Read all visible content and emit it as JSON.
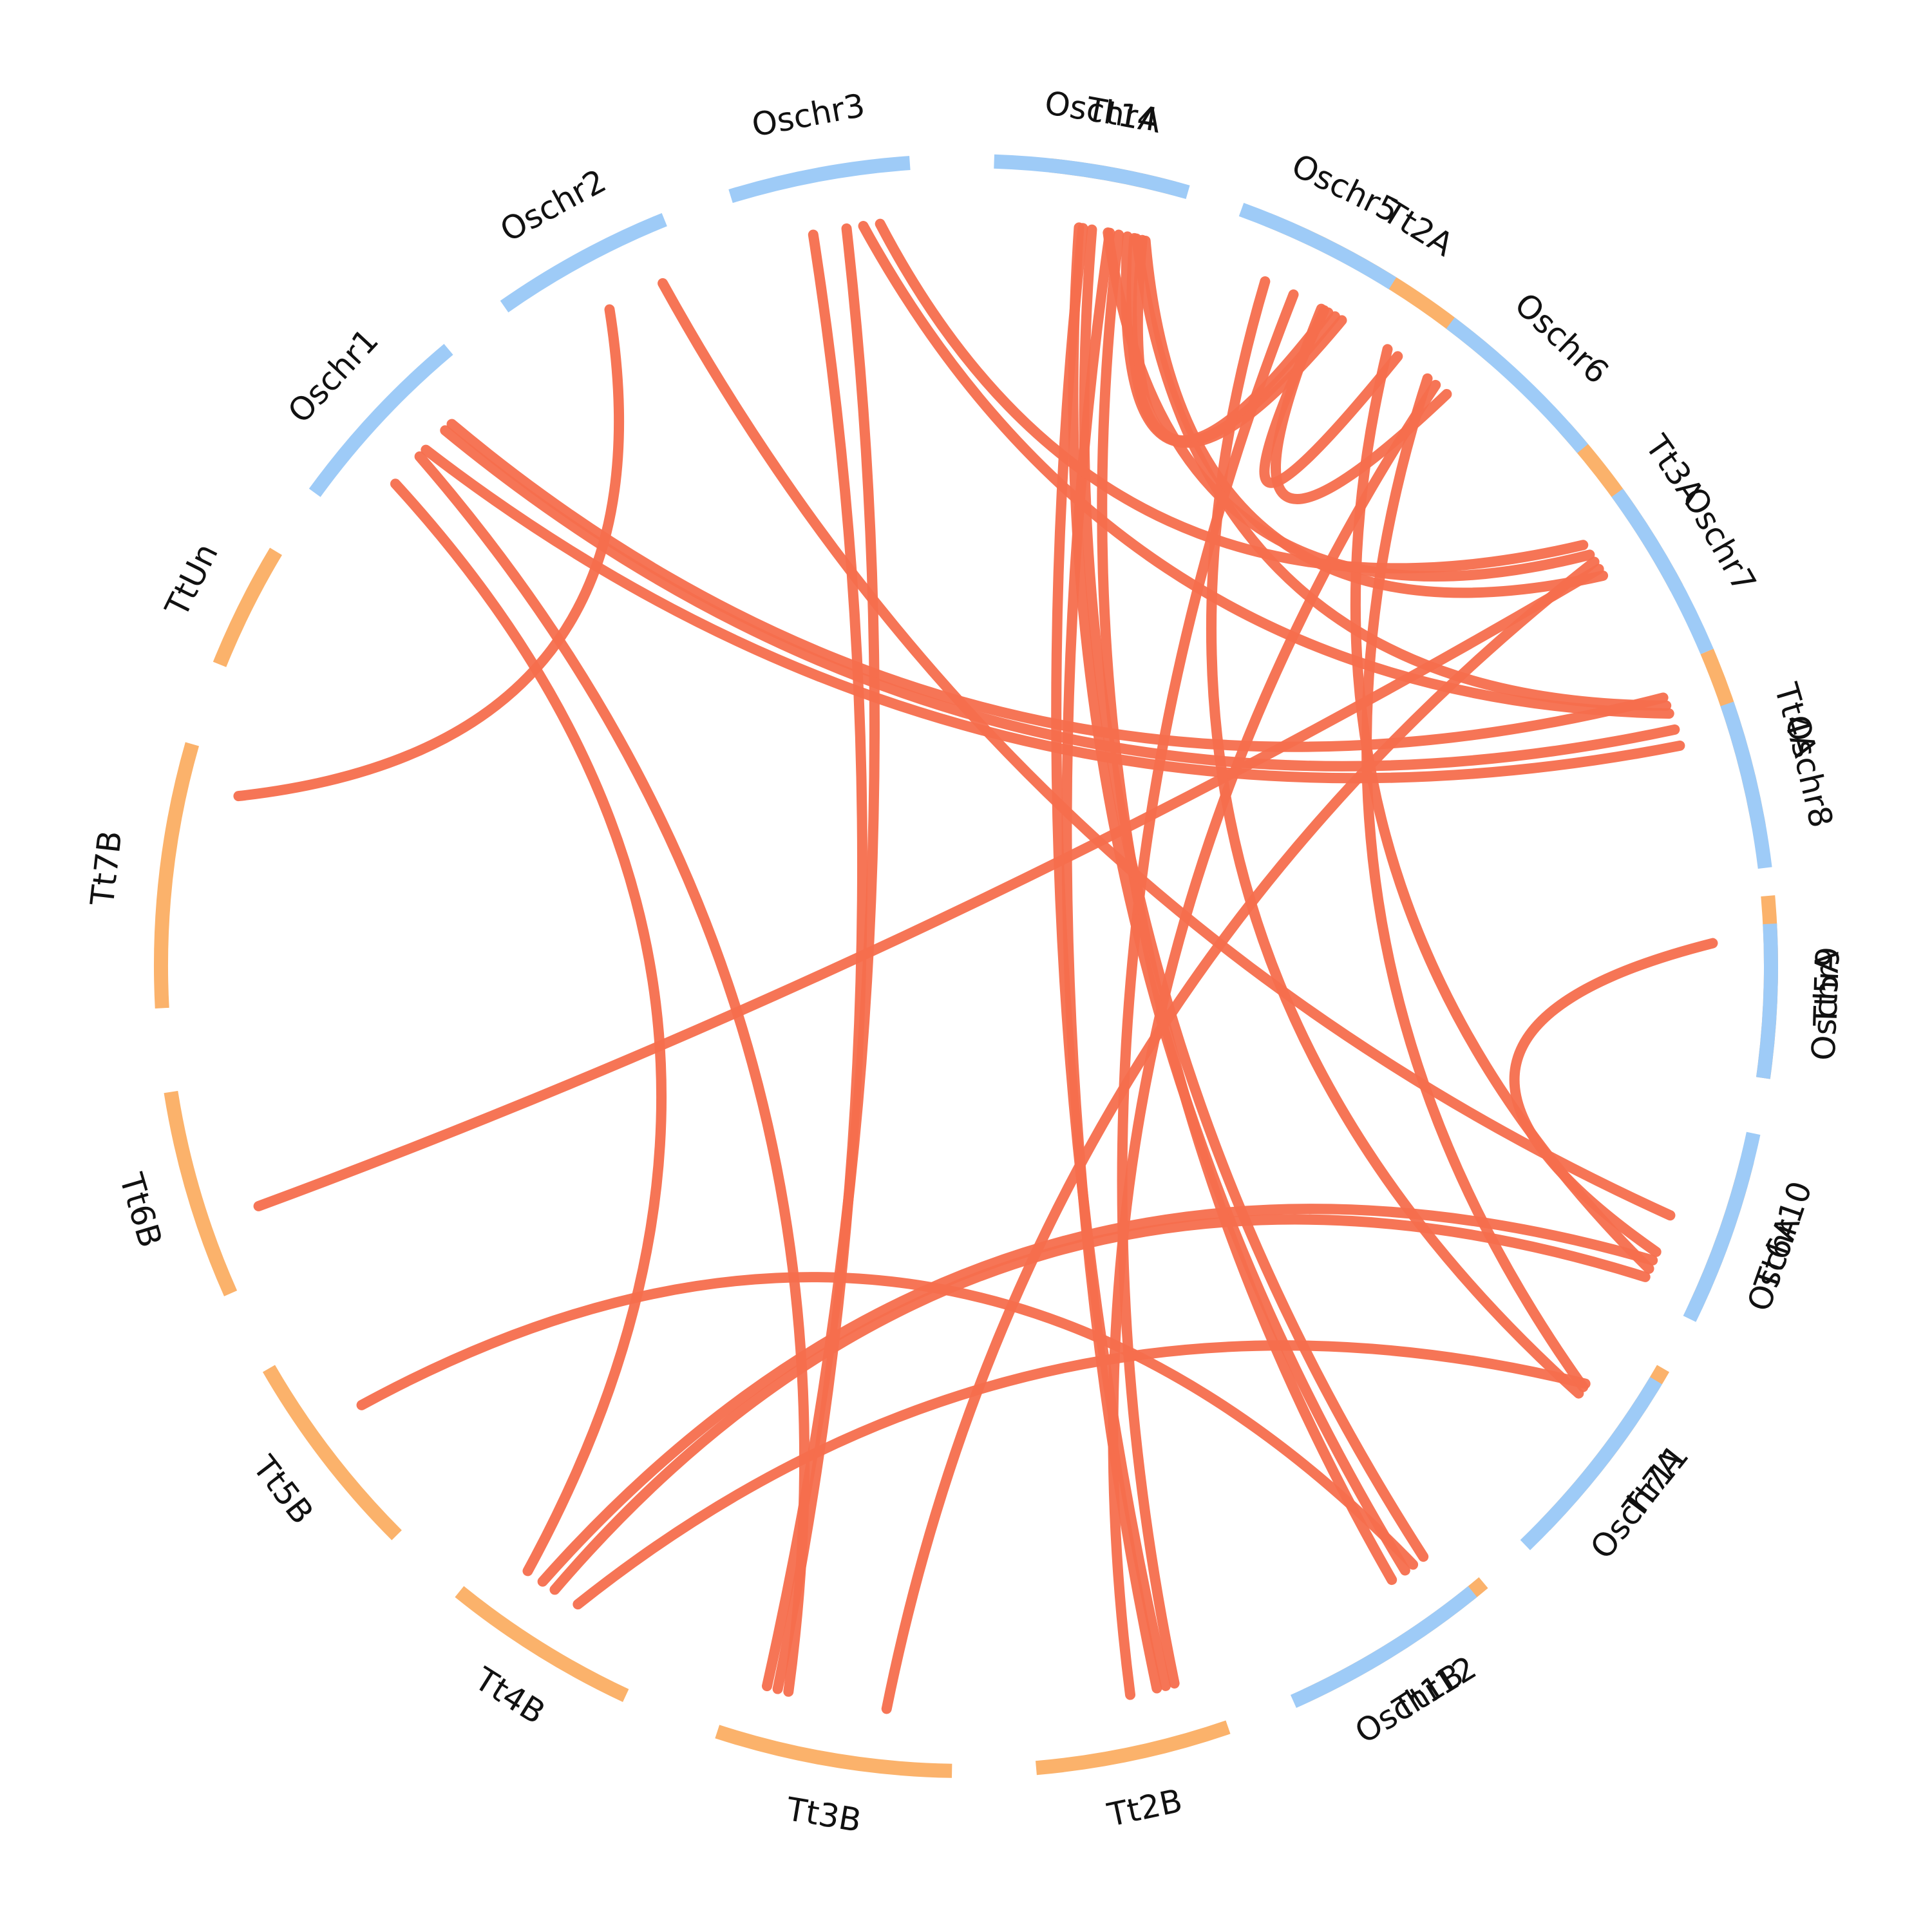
{
  "colors": {
    "rice": "#9ECBF7",
    "wheat": "#FBB26B",
    "link": "#F56E4D",
    "label": "#111111"
  },
  "segments": [
    {
      "id": "Tt1A",
      "label": "Tt1A",
      "group": "wheat"
    },
    {
      "id": "Tt2A",
      "label": "Tt2A",
      "group": "wheat"
    },
    {
      "id": "Tt3A",
      "label": "Tt3A",
      "group": "wheat"
    },
    {
      "id": "Tt4A",
      "label": "Tt4A",
      "group": "wheat"
    },
    {
      "id": "Tt5A",
      "label": "Tt5A",
      "group": "wheat"
    },
    {
      "id": "Tt6A",
      "label": "Tt6A",
      "group": "wheat"
    },
    {
      "id": "Tt7A",
      "label": "Tt7A",
      "group": "wheat"
    },
    {
      "id": "Tt1B",
      "label": "Tt1B",
      "group": "wheat"
    },
    {
      "id": "Tt2B",
      "label": "Tt2B",
      "group": "wheat"
    },
    {
      "id": "Tt3B",
      "label": "Tt3B",
      "group": "wheat"
    },
    {
      "id": "Tt4B",
      "label": "Tt4B",
      "group": "wheat"
    },
    {
      "id": "Tt5B",
      "label": "Tt5B",
      "group": "wheat"
    },
    {
      "id": "Tt6B",
      "label": "Tt6B",
      "group": "wheat"
    },
    {
      "id": "Tt7B",
      "label": "Tt7B",
      "group": "wheat"
    },
    {
      "id": "TtUn",
      "label": "TtUn",
      "group": "wheat"
    },
    {
      "id": "Oschr1",
      "label": "Oschr1",
      "group": "rice"
    },
    {
      "id": "Oschr2",
      "label": "Oschr2",
      "group": "rice"
    },
    {
      "id": "Oschr3",
      "label": "Oschr3",
      "group": "rice"
    },
    {
      "id": "Oschr4",
      "label": "Oschr4",
      "group": "rice"
    },
    {
      "id": "Oschr5",
      "label": "Oschr5",
      "group": "rice"
    },
    {
      "id": "Oschr6",
      "label": "Oschr6",
      "group": "rice"
    },
    {
      "id": "Oschr7",
      "label": "Oschr7",
      "group": "rice"
    },
    {
      "id": "Oschr8",
      "label": "Oschr8",
      "group": "rice"
    },
    {
      "id": "Oschr9",
      "label": "Oschr9",
      "group": "rice"
    },
    {
      "id": "Oschr10",
      "label": "Oschr10",
      "group": "rice"
    },
    {
      "id": "Oschr11",
      "label": "Oschr11",
      "group": "rice"
    },
    {
      "id": "Oschr12",
      "label": "Oschr12",
      "group": "rice"
    }
  ],
  "links": [
    {
      "from": "Oschr12",
      "fpos": 0.15,
      "to": "Tt5B",
      "tpos": 0.6
    },
    {
      "from": "Oschr12",
      "fpos": 0.2,
      "to": "Tt1A",
      "tpos": 0.3
    },
    {
      "from": "Oschr11",
      "fpos": 0.2,
      "to": "Tt4B",
      "tpos": 0.45
    },
    {
      "from": "Oschr11",
      "fpos": 0.22,
      "to": "Tt2A",
      "tpos": 0.85
    },
    {
      "from": "Oschr10",
      "fpos": 0.9,
      "to": "Tt4B",
      "tpos": 0.6
    },
    {
      "from": "Oschr10",
      "fpos": 0.8,
      "to": "Tt4B",
      "tpos": 0.68
    },
    {
      "from": "Oschr10",
      "fpos": 0.85,
      "to": "Tt2A",
      "tpos": 0.65
    },
    {
      "from": "Oschr10",
      "fpos": 0.75,
      "to": "Tt5A",
      "tpos": 0.25
    },
    {
      "from": "Oschr7",
      "fpos": 0.2,
      "to": "Tt1A",
      "tpos": 0.55
    },
    {
      "from": "Oschr7",
      "fpos": 0.25,
      "to": "Tt3B",
      "tpos": 0.3
    },
    {
      "from": "Oschr7",
      "fpos": 0.3,
      "to": "Tt6B",
      "tpos": 0.35
    },
    {
      "from": "Oschr6",
      "fpos": 0.15,
      "to": "Tt2B",
      "tpos": 0.45
    },
    {
      "from": "Oschr5",
      "fpos": 0.85,
      "to": "Tt1A",
      "tpos": 0.72
    },
    {
      "from": "Oschr5",
      "fpos": 0.8,
      "to": "Tt1A",
      "tpos": 0.78
    },
    {
      "from": "Oschr5",
      "fpos": 0.75,
      "to": "Tt1A",
      "tpos": 0.85
    },
    {
      "from": "Oschr5",
      "fpos": 0.72,
      "to": "Tt2A",
      "tpos": 0.7
    },
    {
      "from": "Oschr5",
      "fpos": 0.7,
      "to": "Tt2A",
      "tpos": 0.95
    },
    {
      "from": "Oschr5",
      "fpos": 0.5,
      "to": "Tt2B",
      "tpos": 0.2
    },
    {
      "from": "Oschr5",
      "fpos": 0.3,
      "to": "Tt7A",
      "tpos": 0.35
    },
    {
      "from": "Oschr4",
      "fpos": 0.85,
      "to": "Tt3A",
      "tpos": 0.75
    },
    {
      "from": "Oschr4",
      "fpos": 0.8,
      "to": "Tt4A",
      "tpos": 0.2
    },
    {
      "from": "Oschr4",
      "fpos": 0.7,
      "to": "Tt1B",
      "tpos": 0.35
    },
    {
      "from": "Oschr4",
      "fpos": 0.65,
      "to": "Tt2B",
      "tpos": 0.3
    },
    {
      "from": "Oschr4",
      "fpos": 0.55,
      "to": "Tt1B",
      "tpos": 0.15
    },
    {
      "from": "Oschr4",
      "fpos": 0.5,
      "to": "Tt2B",
      "tpos": 0.25
    },
    {
      "from": "Oschr3",
      "fpos": 0.8,
      "to": "Tt3A",
      "tpos": 0.55
    },
    {
      "from": "Oschr3",
      "fpos": 0.7,
      "to": "Tt4A",
      "tpos": 0.25
    },
    {
      "from": "Oschr3",
      "fpos": 0.6,
      "to": "Tt3B",
      "tpos": 0.85
    },
    {
      "from": "Oschr3",
      "fpos": 0.4,
      "to": "Tt3B",
      "tpos": 0.8
    },
    {
      "from": "Oschr2",
      "fpos": 0.85,
      "to": "Tt6A",
      "tpos": 0.5
    },
    {
      "from": "Oschr2",
      "fpos": 0.5,
      "to": "Tt7B",
      "tpos": 0.85
    },
    {
      "from": "Oschr1",
      "fpos": 0.75,
      "to": "Tt4A",
      "tpos": 0.15
    },
    {
      "from": "Oschr1",
      "fpos": 0.7,
      "to": "Tt4A",
      "tpos": 0.35
    },
    {
      "from": "Oschr1",
      "fpos": 0.55,
      "to": "Tt4A",
      "tpos": 0.45
    },
    {
      "from": "Oschr1",
      "fpos": 0.3,
      "to": "Tt4B",
      "tpos": 0.78
    },
    {
      "from": "Oschr1",
      "fpos": 0.5,
      "to": "Tt3B",
      "tpos": 0.75
    }
  ]
}
